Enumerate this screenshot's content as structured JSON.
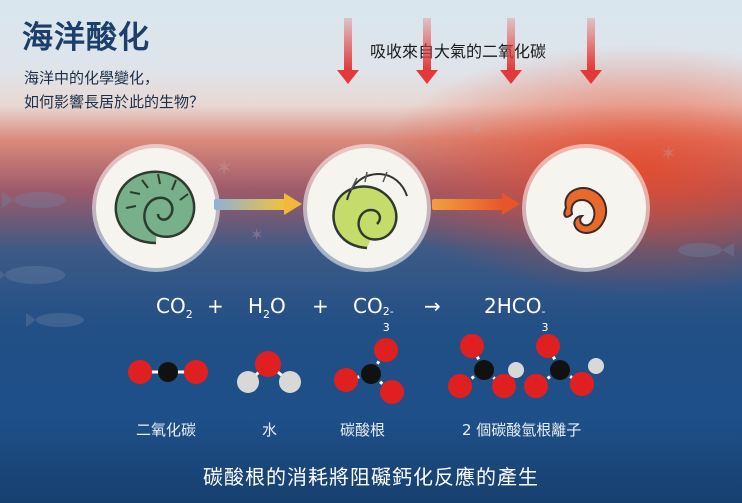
{
  "title": "海洋酸化",
  "subtitle": [
    "海洋中的化學變化，",
    "如何影響長居於此的生物？"
  ],
  "absorb_label": "吸收來自大氣的二氧化碳",
  "equation": {
    "co2": "CO",
    "co2_sub": "2",
    "plus1": "+",
    "h2o_h": "H",
    "h2o_sub": "2",
    "h2o_o": "O",
    "plus2": "+",
    "co3": "CO",
    "co3_sup": "2-",
    "co3_sub": "3",
    "arrow": "→",
    "hco3": "2HCO",
    "hco3_sup": "-",
    "hco3_sub": "3"
  },
  "molecules": {
    "co2": "二氧化碳",
    "water": "水",
    "carbonate": "碳酸根",
    "bicarbonate": "2 個碳酸氫根離子"
  },
  "bottom_text": "碳酸根的消耗將阻礙鈣化反應的產生",
  "colors": {
    "title": "#1b3f6a",
    "absorb_arrow": "#e23a3a",
    "oxygen": "#e02020",
    "carbon": "#111111",
    "hydrogen": "#d8d8d8",
    "shell_healthy": "#77b08a",
    "shell_weak": "#c6dc6a",
    "shell_dissolved": "#e86a2a"
  }
}
